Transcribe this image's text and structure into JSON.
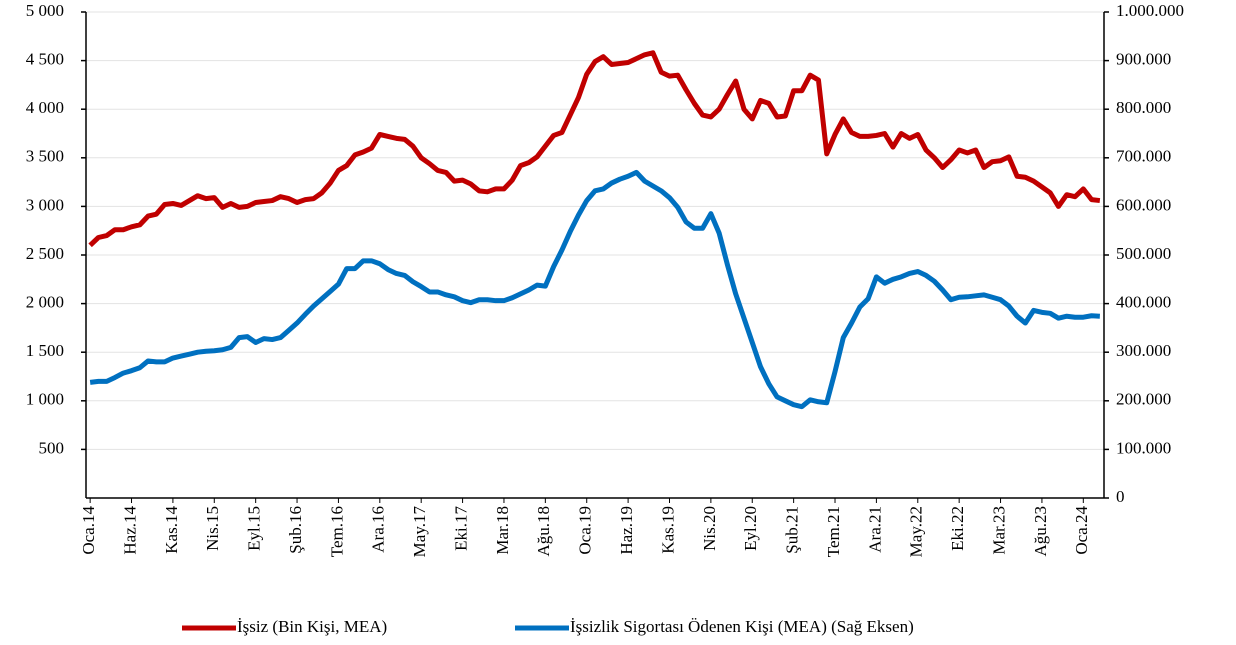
{
  "chart_data": {
    "type": "line",
    "categories": [
      "Oca.14",
      null,
      null,
      null,
      null,
      "Haz.14",
      null,
      null,
      null,
      null,
      "Kas.14",
      null,
      null,
      null,
      null,
      "Nis.15",
      null,
      null,
      null,
      null,
      "Eyl.15",
      null,
      null,
      null,
      null,
      "Şub.16",
      null,
      null,
      null,
      null,
      "Tem.16",
      null,
      null,
      null,
      null,
      "Ara.16",
      null,
      null,
      null,
      null,
      "May.17",
      null,
      null,
      null,
      null,
      "Eki.17",
      null,
      null,
      null,
      null,
      "Mar.18",
      null,
      null,
      null,
      null,
      "Ağu.18",
      null,
      null,
      null,
      null,
      "Oca.19",
      null,
      null,
      null,
      null,
      "Haz.19",
      null,
      null,
      null,
      null,
      "Kas.19",
      null,
      null,
      null,
      null,
      "Nis.20",
      null,
      null,
      null,
      null,
      "Eyl.20",
      null,
      null,
      null,
      null,
      "Şub.21",
      null,
      null,
      null,
      null,
      "Tem.21",
      null,
      null,
      null,
      null,
      "Ara.21",
      null,
      null,
      null,
      null,
      "May.22",
      null,
      null,
      null,
      null,
      "Eki.22",
      null,
      null,
      null,
      null,
      "Mar.23",
      null,
      null,
      null,
      null,
      "Ağu.23",
      null,
      null,
      null,
      null,
      "Oca.24",
      null,
      null
    ],
    "series": [
      {
        "name": "İşsiz (Bin Kişi, MEA)",
        "color": "#c00000",
        "values": [
          2600,
          2680,
          2700,
          2760,
          2760,
          2790,
          2810,
          2900,
          2920,
          3020,
          3030,
          3010,
          3060,
          3110,
          3080,
          3090,
          2990,
          3030,
          2990,
          3000,
          3040,
          3050,
          3060,
          3100,
          3080,
          3040,
          3070,
          3080,
          3140,
          3240,
          3370,
          3420,
          3530,
          3560,
          3600,
          3740,
          3720,
          3700,
          3690,
          3620,
          3500,
          3440,
          3370,
          3350,
          3260,
          3270,
          3230,
          3160,
          3150,
          3180,
          3180,
          3270,
          3420,
          3450,
          3510,
          3620,
          3730,
          3760,
          3940,
          4120,
          4360,
          4490,
          4540,
          4460,
          4470,
          4480,
          4520,
          4560,
          4580,
          4380,
          4340,
          4350,
          4200,
          4060,
          3940,
          3920,
          4000,
          4150,
          4290,
          4000,
          3900,
          4090,
          4060,
          3920,
          3930,
          4190,
          4190,
          4350,
          4300,
          3540,
          3740,
          3900,
          3760,
          3720,
          3720,
          3730,
          3750,
          3610,
          3750,
          3700,
          3740,
          3580,
          3500,
          3400,
          3480,
          3580,
          3550,
          3580,
          3400,
          3460,
          3470,
          3510,
          3310,
          3300,
          3260,
          3200,
          3140,
          3000,
          3120,
          3100,
          3180,
          3070,
          3060
        ]
      },
      {
        "name": "İşsizlik Sigortası Ödenen Kişi (MEA) (Sağ Eksen)",
        "color": "#0070c0",
        "axis": "y2",
        "values": [
          238000,
          240000,
          240000,
          248000,
          257000,
          262000,
          268000,
          282000,
          280000,
          280000,
          288000,
          292000,
          296000,
          300000,
          302000,
          303000,
          305000,
          310000,
          330000,
          332000,
          320000,
          328000,
          326000,
          330000,
          345000,
          360000,
          378000,
          395000,
          410000,
          425000,
          440000,
          472000,
          472000,
          488000,
          488000,
          482000,
          470000,
          462000,
          458000,
          445000,
          435000,
          424000,
          424000,
          418000,
          414000,
          406000,
          402000,
          408000,
          408000,
          406000,
          406000,
          412000,
          420000,
          428000,
          438000,
          436000,
          476000,
          510000,
          548000,
          582000,
          612000,
          632000,
          636000,
          648000,
          656000,
          662000,
          670000,
          652000,
          642000,
          632000,
          618000,
          598000,
          568000,
          555000,
          555000,
          585000,
          545000,
          480000,
          420000,
          370000,
          320000,
          270000,
          235000,
          208000,
          200000,
          192000,
          188000,
          202000,
          198000,
          196000,
          260000,
          330000,
          360000,
          393000,
          410000,
          455000,
          442000,
          450000,
          455000,
          462000,
          466000,
          458000,
          446000,
          428000,
          408000,
          413000,
          414000,
          416000,
          418000,
          413000,
          408000,
          395000,
          374000,
          360000,
          386000,
          382000,
          380000,
          370000,
          374000,
          372000,
          372000,
          375000,
          374000
        ]
      }
    ],
    "ylim": [
      0,
      5000
    ],
    "yticks": [
      500,
      {
        "value": 1000,
        "label": "1 000"
      },
      {
        "value": 1500,
        "label": "1 500"
      },
      {
        "value": 2000,
        "label": "2 000"
      },
      {
        "value": 2500,
        "label": "2 500"
      },
      {
        "value": 3000,
        "label": "3 000"
      },
      {
        "value": 3500,
        "label": "3 500"
      },
      {
        "value": 4000,
        "label": "4 000"
      },
      {
        "value": 4500,
        "label": "4 500"
      },
      {
        "value": 5000,
        "label": "5 000"
      }
    ],
    "y2lim": [
      0,
      1000000
    ],
    "y2ticks": [
      0,
      {
        "value": 100000,
        "label": "100.000"
      },
      {
        "value": 200000,
        "label": "200.000"
      },
      {
        "value": 300000,
        "label": "300.000"
      },
      {
        "value": 400000,
        "label": "400.000"
      },
      {
        "value": 500000,
        "label": "500.000"
      },
      {
        "value": 600000,
        "label": "600.000"
      },
      {
        "value": 700000,
        "label": "700.000"
      },
      {
        "value": 800000,
        "label": "800.000"
      },
      {
        "value": 900000,
        "label": "900.000"
      },
      {
        "value": 1000000,
        "label": "1.000.000"
      }
    ],
    "grid": true,
    "legend": "bottom"
  }
}
